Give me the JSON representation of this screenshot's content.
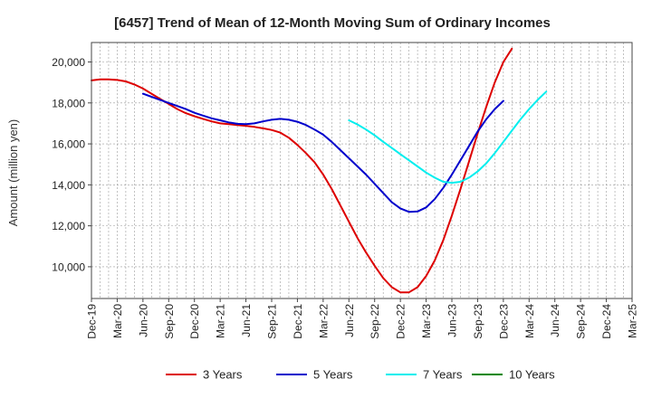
{
  "chart_data": {
    "type": "line",
    "title": "[6457]  Trend of Mean of 12-Month Moving Sum of Ordinary Incomes",
    "xlabel": "",
    "ylabel": "Amount (million yen)",
    "x_tick_labels": [
      "Dec-19",
      "Mar-20",
      "Jun-20",
      "Sep-20",
      "Dec-20",
      "Mar-21",
      "Jun-21",
      "Sep-21",
      "Dec-21",
      "Mar-22",
      "Jun-22",
      "Sep-22",
      "Dec-22",
      "Mar-23",
      "Jun-23",
      "Sep-23",
      "Dec-23",
      "Mar-24",
      "Jun-24",
      "Sep-24",
      "Dec-24",
      "Mar-25"
    ],
    "y_ticks": [
      10000,
      12000,
      14000,
      16000,
      18000,
      20000
    ],
    "y_tick_labels": [
      "10,000",
      "12,000",
      "14,000",
      "16,000",
      "18,000",
      "20,000"
    ],
    "ylim": [
      8450,
      20950
    ],
    "grid": true,
    "legend_position": "bottom",
    "series": [
      {
        "name": "3 Years",
        "color": "#dd0000",
        "x_start": 0,
        "values": [
          19100,
          19150,
          19150,
          19120,
          19050,
          18900,
          18700,
          18450,
          18200,
          17950,
          17700,
          17500,
          17350,
          17220,
          17100,
          17000,
          16960,
          16920,
          16880,
          16830,
          16760,
          16680,
          16550,
          16300,
          15950,
          15550,
          15100,
          14500,
          13800,
          13000,
          12200,
          11400,
          10700,
          10050,
          9450,
          9000,
          8750,
          8750,
          9000,
          9550,
          10300,
          11300,
          12500,
          13800,
          15150,
          16500,
          17800,
          19000,
          20000,
          20650
        ]
      },
      {
        "name": "5 Years",
        "color": "#0000cc",
        "x_start": 6,
        "values": [
          18450,
          18300,
          18150,
          18000,
          17850,
          17700,
          17520,
          17380,
          17250,
          17150,
          17050,
          16980,
          16960,
          17000,
          17100,
          17180,
          17220,
          17180,
          17080,
          16920,
          16700,
          16450,
          16100,
          15700,
          15300,
          14900,
          14500,
          14050,
          13600,
          13150,
          12850,
          12680,
          12700,
          12900,
          13300,
          13850,
          14500,
          15200,
          15900,
          16600,
          17200,
          17700,
          18100
        ]
      },
      {
        "name": "7 Years",
        "color": "#00eeee",
        "x_start": 30,
        "values": [
          17150,
          16950,
          16700,
          16420,
          16100,
          15800,
          15500,
          15200,
          14900,
          14600,
          14350,
          14150,
          14100,
          14150,
          14350,
          14650,
          15050,
          15550,
          16100,
          16650,
          17200,
          17700,
          18150,
          18550
        ]
      },
      {
        "name": "10 Years",
        "color": "#008800",
        "x_start": 0,
        "values": []
      }
    ]
  }
}
